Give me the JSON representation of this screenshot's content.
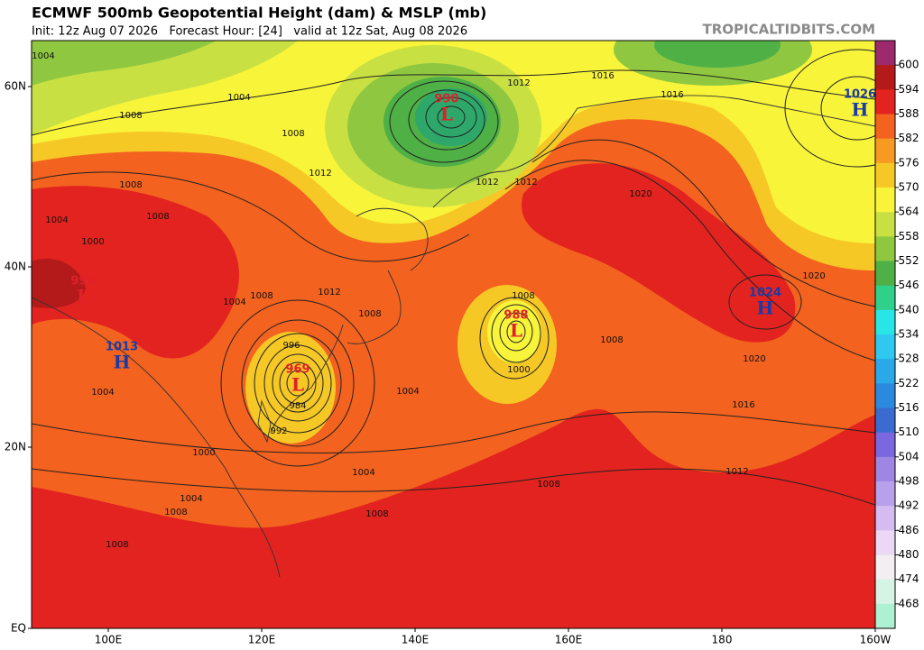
{
  "header": {
    "title": "ECMWF 500mb Geopotential Height (dam) & MSLP (mb)",
    "subtitle": "Init: 12z Aug 07 2026   Forecast Hour: [24]   valid at 12z Sat, Aug 08 2026",
    "brand": "TROPICALTIDBITS.COM"
  },
  "map": {
    "lat_labels": [
      "60N",
      "40N",
      "20N",
      "EQ"
    ],
    "lon_labels": [
      "100E",
      "120E",
      "140E",
      "160E",
      "180",
      "160W"
    ],
    "pressure_centers": [
      {
        "value": 990,
        "symbol": "L"
      },
      {
        "value": 988,
        "symbol": "L"
      },
      {
        "value": 969,
        "symbol": "L"
      },
      {
        "value": 1024,
        "symbol": "H"
      },
      {
        "value": 1026,
        "symbol": "H"
      },
      {
        "value": 995,
        "symbol": "L"
      },
      {
        "value": 1013,
        "symbol": "H"
      }
    ],
    "isobar_labels": [
      1004,
      1008,
      1004,
      1008,
      1012,
      1008,
      1008,
      1004,
      1000,
      1008,
      1012,
      1012,
      1008,
      1016,
      1016,
      1012,
      1012,
      1020,
      1020,
      1020,
      1016,
      1004,
      1000,
      1008,
      996,
      984,
      992,
      1004,
      1000,
      1004,
      1004,
      1008,
      1008,
      1008,
      1012,
      1008,
      1004,
      1008
    ]
  },
  "colorbar": {
    "levels": [
      600,
      594,
      588,
      582,
      576,
      570,
      564,
      558,
      552,
      546,
      540,
      534,
      528,
      522,
      516,
      510,
      504,
      498,
      492,
      486,
      480,
      474,
      468
    ],
    "colors": [
      "#9c2a6c",
      "#b41a1a",
      "#e3231f",
      "#f3621f",
      "#f79a22",
      "#f6c825",
      "#f8f43a",
      "#c9e043",
      "#8fc840",
      "#4fb046",
      "#2ed08a",
      "#28e6e6",
      "#2ec8f0",
      "#2aa8e8",
      "#2c8ade",
      "#3a6cd0",
      "#7a68dc",
      "#9e86e2",
      "#b8a0ea",
      "#d4bcf0",
      "#ead8f4",
      "#f2eef2",
      "#d6f4e4",
      "#aef0d2"
    ]
  }
}
